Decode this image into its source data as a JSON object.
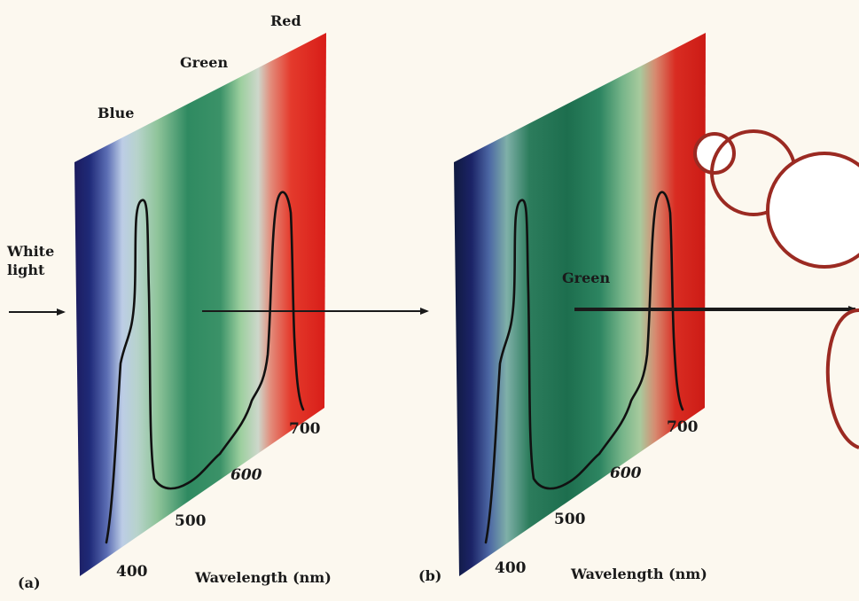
{
  "panel_a": {
    "tag": "(a)",
    "band_labels": {
      "blue": "Blue",
      "green": "Green",
      "red": "Red"
    },
    "incident_label_line1": "White",
    "incident_label_line2": "light",
    "ticks": [
      "400",
      "500",
      "600",
      "700"
    ],
    "axis_title": "Wavelength (nm)"
  },
  "panel_b": {
    "tag": "(b)",
    "transmitted_label": "Green",
    "ticks": [
      "400",
      "500",
      "600",
      "700"
    ],
    "axis_title": "Wavelength (nm)"
  },
  "colors": {
    "background": "#fcf8ef",
    "circle_stroke": "#9b2a22",
    "curve": "#111111",
    "arrow": "#1a1a1a"
  }
}
